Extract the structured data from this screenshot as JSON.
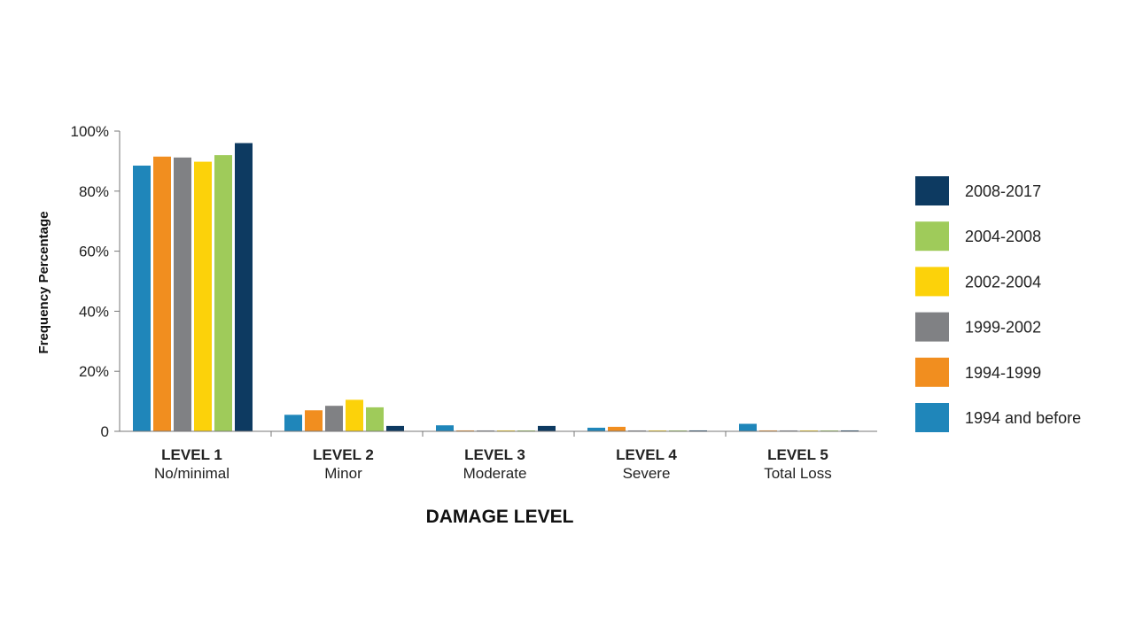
{
  "chart_data": {
    "type": "bar",
    "xlabel": "DAMAGE LEVEL",
    "ylabel": "Frequency Percentage",
    "ylim": [
      0,
      100
    ],
    "yticks": [
      "0",
      "20%",
      "40%",
      "60%",
      "80%",
      "100%"
    ],
    "ytick_values": [
      0,
      20,
      40,
      60,
      80,
      100
    ],
    "categories": [
      {
        "top": "LEVEL 1",
        "bottom": "No/minimal"
      },
      {
        "top": "LEVEL 2",
        "bottom": "Minor"
      },
      {
        "top": "LEVEL 3",
        "bottom": "Moderate"
      },
      {
        "top": "LEVEL 4",
        "bottom": "Severe"
      },
      {
        "top": "LEVEL 5",
        "bottom": "Total Loss"
      }
    ],
    "series": [
      {
        "name": "1994 and before",
        "color": "#1f86ba",
        "values": [
          88.5,
          5.5,
          2.0,
          1.2,
          2.5
        ]
      },
      {
        "name": "1994-1999",
        "color": "#f18e1f",
        "values": [
          91.5,
          7.0,
          0.3,
          1.5,
          0.3
        ]
      },
      {
        "name": "1999-2002",
        "color": "#808184",
        "values": [
          91.2,
          8.5,
          0.3,
          0.3,
          0.3
        ]
      },
      {
        "name": "2002-2004",
        "color": "#fcd20a",
        "values": [
          89.8,
          10.5,
          0.3,
          0.3,
          0.3
        ]
      },
      {
        "name": "2004-2008",
        "color": "#9fcb5a",
        "values": [
          92.0,
          8.0,
          0.3,
          0.3,
          0.3
        ]
      },
      {
        "name": "2008-2017",
        "color": "#0d3a61",
        "values": [
          96.0,
          1.8,
          1.8,
          0.3,
          0.3
        ]
      }
    ],
    "legend_order": [
      "2008-2017",
      "2004-2008",
      "2002-2004",
      "1999-2002",
      "1994-1999",
      "1994 and before"
    ],
    "legend_position": "right",
    "grid": false
  }
}
